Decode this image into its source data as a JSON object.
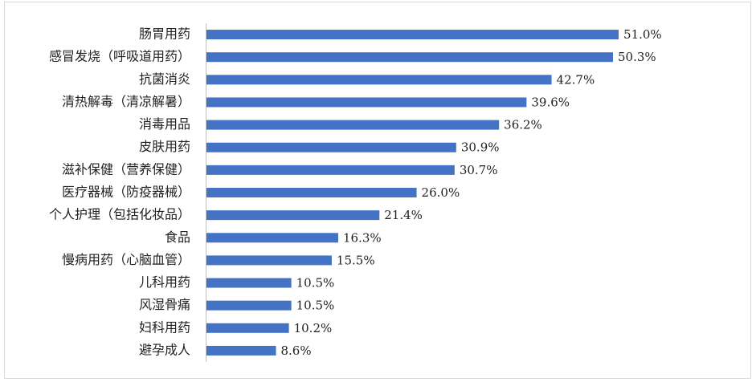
{
  "chart_data": {
    "type": "bar",
    "orientation": "horizontal",
    "categories": [
      "肠胃用药",
      "感冒发烧（呼吸道用药）",
      "抗菌消炎",
      "清热解毒（清凉解暑）",
      "消毒用品",
      "皮肤用药",
      "滋补保健（营养保健）",
      "医疗器械（防疫器械）",
      "个人护理（包括化妆品）",
      "食品",
      "慢病用药（心脑血管）",
      "儿科用药",
      "风湿骨痛",
      "妇科用药",
      "避孕成人"
    ],
    "values": [
      51.0,
      50.3,
      42.7,
      39.6,
      36.2,
      30.9,
      30.7,
      26.0,
      21.4,
      16.3,
      15.5,
      10.5,
      10.5,
      10.2,
      8.6
    ],
    "value_labels": [
      "51.0%",
      "50.3%",
      "42.7%",
      "39.6%",
      "36.2%",
      "30.9%",
      "30.7%",
      "26.0%",
      "21.4%",
      "16.3%",
      "15.5%",
      "10.5%",
      "10.5%",
      "10.2%",
      "8.6%"
    ],
    "color": "#4472c4",
    "xlim": [
      0,
      67
    ]
  }
}
